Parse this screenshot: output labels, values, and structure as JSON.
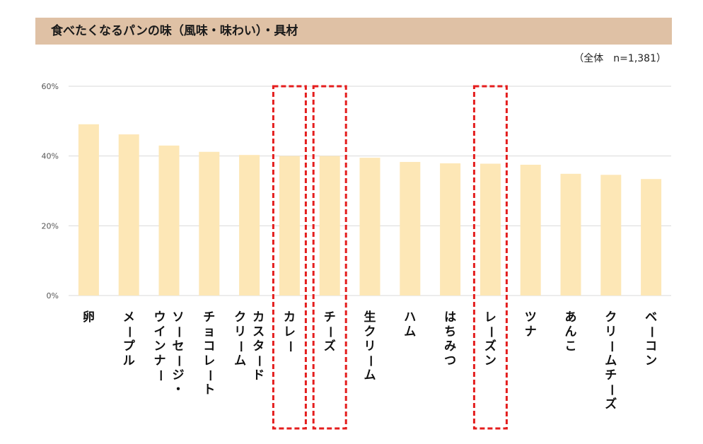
{
  "title": "食べたくなるパンの味（風味・味わい）・具材",
  "subtitle": "（全体　n=1,381）",
  "chart_data": {
    "type": "bar",
    "title": "食べたくなるパンの味（風味・味わい）・具材",
    "note": "（全体　n=1,381）",
    "categories": [
      "卵",
      "メープル",
      "ソーセージ・ウインナー",
      "チョコレート",
      "カスタードクリーム",
      "カレー",
      "チーズ",
      "生クリーム",
      "ハム",
      "はちみつ",
      "レーズン",
      "ツナ",
      "あんこ",
      "クリームチーズ",
      "ベーコン"
    ],
    "label_lines": [
      [
        "卵"
      ],
      [
        "メープル"
      ],
      [
        "ソーセージ・",
        "ウインナー"
      ],
      [
        "チョコレート"
      ],
      [
        "カスタード",
        "クリーム"
      ],
      [
        "カレー"
      ],
      [
        "チーズ"
      ],
      [
        "生クリーム"
      ],
      [
        "ハム"
      ],
      [
        "はちみつ"
      ],
      [
        "レーズン"
      ],
      [
        "ツナ"
      ],
      [
        "あんこ"
      ],
      [
        "クリームチーズ"
      ],
      [
        "ベーコン"
      ]
    ],
    "values": [
      49.1,
      46.2,
      43.0,
      41.2,
      40.3,
      40.0,
      40.0,
      39.5,
      38.3,
      37.9,
      37.8,
      37.5,
      34.9,
      34.6,
      33.4
    ],
    "highlighted": [
      "カレー",
      "チーズ",
      "レーズン"
    ],
    "ylim": [
      0,
      60
    ],
    "yticks": [
      0,
      20,
      40,
      60
    ],
    "ytick_labels": [
      "0%",
      "20%",
      "40%",
      "60%"
    ],
    "grid": true,
    "legend": "none",
    "colors": {
      "bar": "#fde7b6",
      "grid": "#d9d9d9",
      "highlight": "#e41e1e",
      "title_bg": "#dfc1a5"
    }
  }
}
